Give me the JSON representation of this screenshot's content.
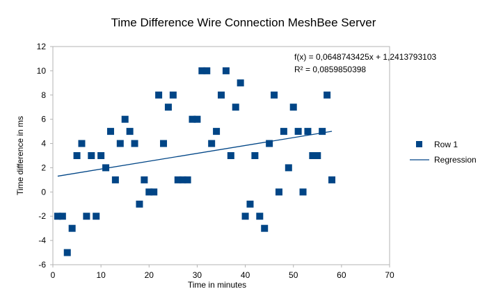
{
  "chart_data": {
    "type": "scatter",
    "title": "Time Difference Wire Connection MeshBee Server",
    "xlabel": "Time in minutes",
    "ylabel": "Time difference in ms",
    "xlim": [
      0,
      70
    ],
    "ylim": [
      -6,
      12
    ],
    "x_ticks": [
      0,
      10,
      20,
      30,
      40,
      50,
      60,
      70
    ],
    "y_ticks": [
      -6,
      -4,
      -2,
      0,
      2,
      4,
      6,
      8,
      10,
      12
    ],
    "grid": false,
    "legend_position": "right",
    "series": [
      {
        "name": "Row 1",
        "color": "#004586",
        "marker": "square",
        "points": [
          [
            1,
            -2
          ],
          [
            2,
            -2
          ],
          [
            3,
            -5
          ],
          [
            4,
            -3
          ],
          [
            5,
            3
          ],
          [
            6,
            4
          ],
          [
            7,
            -2
          ],
          [
            8,
            3
          ],
          [
            9,
            -2
          ],
          [
            10,
            3
          ],
          [
            11,
            2
          ],
          [
            12,
            5
          ],
          [
            13,
            1
          ],
          [
            14,
            4
          ],
          [
            15,
            6
          ],
          [
            16,
            5
          ],
          [
            17,
            4
          ],
          [
            18,
            -1
          ],
          [
            19,
            1
          ],
          [
            20,
            0
          ],
          [
            21,
            0
          ],
          [
            22,
            8
          ],
          [
            23,
            4
          ],
          [
            24,
            7
          ],
          [
            25,
            8
          ],
          [
            26,
            1
          ],
          [
            27,
            1
          ],
          [
            28,
            1
          ],
          [
            29,
            6
          ],
          [
            30,
            6
          ],
          [
            31,
            10
          ],
          [
            32,
            10
          ],
          [
            33,
            4
          ],
          [
            34,
            5
          ],
          [
            35,
            8
          ],
          [
            36,
            10
          ],
          [
            37,
            3
          ],
          [
            38,
            7
          ],
          [
            39,
            9
          ],
          [
            40,
            -2
          ],
          [
            41,
            -1
          ],
          [
            42,
            3
          ],
          [
            43,
            -2
          ],
          [
            44,
            -3
          ],
          [
            45,
            4
          ],
          [
            46,
            8
          ],
          [
            47,
            0
          ],
          [
            48,
            5
          ],
          [
            49,
            2
          ],
          [
            50,
            7
          ],
          [
            51,
            5
          ],
          [
            52,
            0
          ],
          [
            53,
            5
          ],
          [
            54,
            3
          ],
          [
            55,
            3
          ],
          [
            56,
            5
          ],
          [
            57,
            8
          ],
          [
            58,
            1
          ]
        ]
      }
    ],
    "regression": {
      "name": "Regression",
      "color": "#004586",
      "slope": 0.0648743425,
      "intercept": 1.2413793103,
      "x_range": [
        1,
        58
      ],
      "equation_text": "f(x) = 0,0648743425x + 1,2413793103",
      "r2_text": "R² = 0,0859850398"
    },
    "legend": [
      {
        "label": "Row 1",
        "kind": "marker"
      },
      {
        "label": "Regression",
        "kind": "line"
      }
    ]
  }
}
